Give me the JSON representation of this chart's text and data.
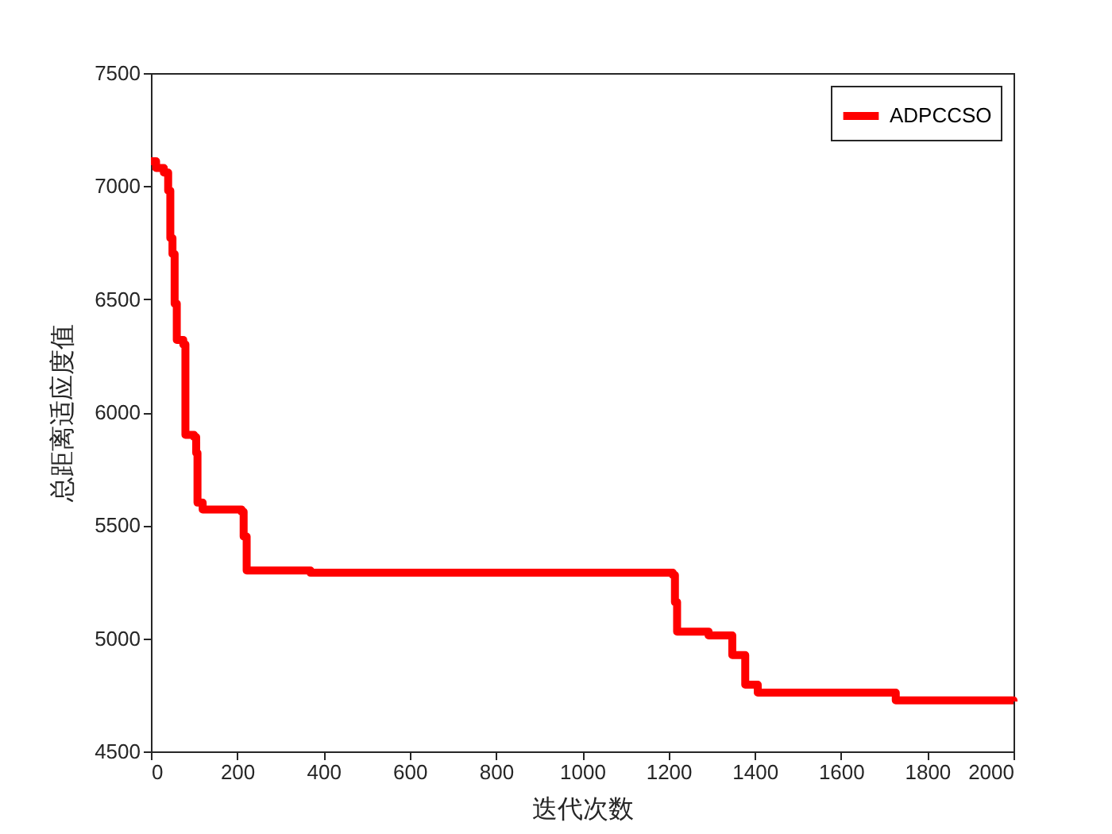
{
  "chart_data": {
    "type": "step",
    "xlabel": "迭代次数",
    "ylabel": "总距离适应度值",
    "x": [
      0,
      12,
      30,
      40,
      45,
      50,
      55,
      60,
      75,
      80,
      100,
      105,
      108,
      120,
      210,
      215,
      222,
      370,
      1210,
      1215,
      1220,
      1293,
      1348,
      1378,
      1407,
      1727,
      2000
    ],
    "series": [
      {
        "name": "ADPCCSO",
        "color": "#ff0000",
        "values": [
          7110,
          7080,
          7060,
          6980,
          6770,
          6700,
          6480,
          6320,
          6300,
          5900,
          5890,
          5820,
          5600,
          5570,
          5560,
          5450,
          5300,
          5290,
          5280,
          5160,
          5030,
          5013,
          4926,
          4795,
          4760,
          4726,
          4720
        ]
      }
    ],
    "xlim": [
      0,
      2000
    ],
    "xticks": [
      0,
      200,
      400,
      600,
      800,
      1000,
      1200,
      1400,
      1600,
      1800,
      2000
    ],
    "ylim": [
      4500,
      7500
    ],
    "yticks": [
      4500,
      5000,
      5500,
      6000,
      6500,
      7000,
      7500
    ],
    "legend": "top right",
    "grid": false,
    "line_style": "solid",
    "marker": "none"
  }
}
